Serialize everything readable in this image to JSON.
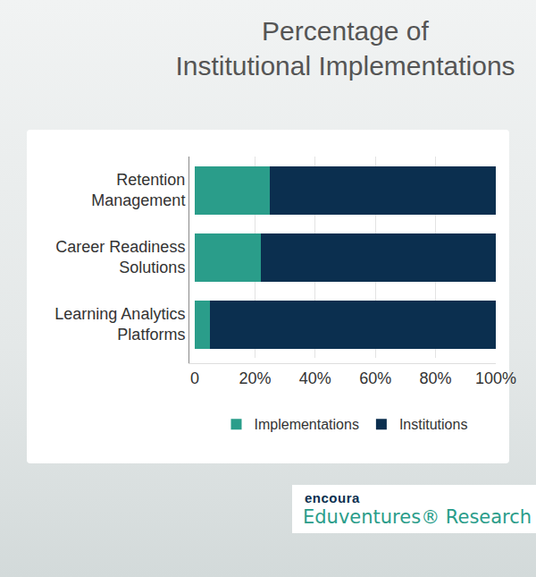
{
  "chart_data": {
    "type": "bar",
    "title": "Percentage of\nInstitutional Implementations",
    "orientation": "horizontal",
    "stacked": true,
    "grid": true,
    "legend": "bottom",
    "categories": [
      "Retention\nManagement",
      "Career Readiness\nSolutions",
      "Learning Analytics\nPlatforms"
    ],
    "series": [
      {
        "name": "Implementations",
        "color": "#2a9d8a",
        "values": [
          25,
          22,
          5
        ]
      },
      {
        "name": "Institutions",
        "color": "#0b2f4f",
        "values": [
          75,
          78,
          95
        ]
      }
    ],
    "xlim": [
      0,
      100
    ],
    "xticks": [
      0,
      {
        "value": 20,
        "label": "20%"
      },
      {
        "value": 40,
        "label": "40%"
      },
      {
        "value": 60,
        "label": "60%"
      },
      {
        "value": 80,
        "label": "80%"
      },
      {
        "value": 100,
        "label": "100%"
      }
    ],
    "annotations": [
      "encoura",
      "Eduventures® Research"
    ]
  }
}
